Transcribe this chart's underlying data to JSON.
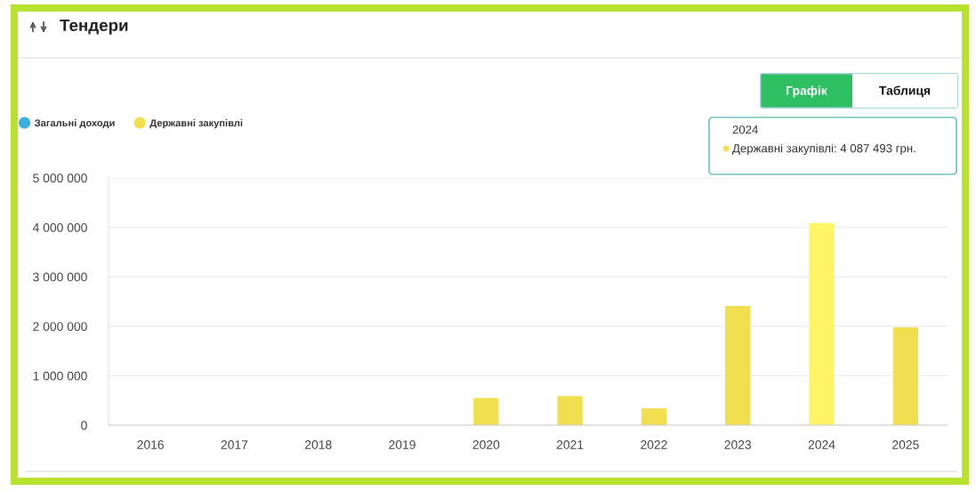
{
  "chart_data": {
    "type": "bar",
    "title": "Тендери",
    "categories": [
      "2016",
      "2017",
      "2018",
      "2019",
      "2020",
      "2021",
      "2022",
      "2023",
      "2024",
      "2025"
    ],
    "series": [
      {
        "name": "Загальні доходи",
        "color": "#3aafe0",
        "values": [
          null,
          null,
          null,
          null,
          null,
          null,
          null,
          null,
          null,
          null
        ]
      },
      {
        "name": "Державні закупівлі",
        "color": "#f2df50",
        "colors": [
          "#f2df50",
          "#f2df50",
          "#f2df50",
          "#f2df50",
          "#f2df50",
          "#f2df50",
          "#f2df50",
          "#f2df50",
          "#fdf566",
          "#f2df50"
        ],
        "values": [
          null,
          null,
          null,
          null,
          550000,
          590000,
          340000,
          2410000,
          4087493,
          1980000
        ]
      }
    ],
    "ylim": [
      0,
      5000000
    ],
    "yticks": [
      0,
      {
        "value": 1000000,
        "label": "1 000 000"
      },
      {
        "value": 2000000,
        "label": "2 000 000"
      },
      {
        "value": 3000000,
        "label": "3 000 000"
      },
      {
        "value": 4000000,
        "label": "4 000 000"
      },
      {
        "value": 5000000,
        "label": "5 000 000"
      }
    ],
    "grid": "y",
    "legend": "top left",
    "annotations": [
      "Графік",
      "Таблиця",
      "2024\nДержавні закупівлі: 4 087 493 грн."
    ]
  }
}
